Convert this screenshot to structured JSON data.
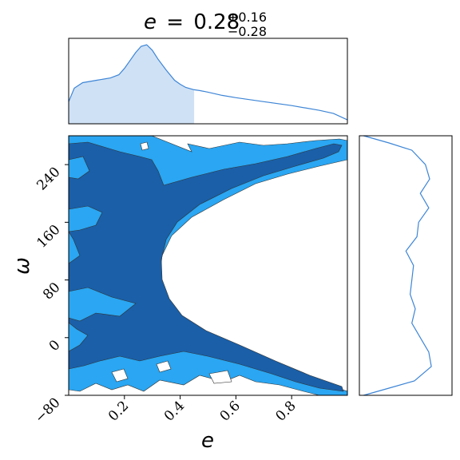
{
  "chart_data": {
    "type": "corner",
    "title": {
      "param": "e",
      "equals": "=",
      "median": "0.28",
      "upper": "+0.16",
      "lower": "−0.28"
    },
    "xlabel": "e",
    "ylabel": "ω",
    "xlim": [
      0.0,
      1.0
    ],
    "ylim": [
      -80,
      280
    ],
    "x_ticks": [
      0.2,
      0.4,
      0.6,
      0.8
    ],
    "x_tick_labels": [
      "0.2",
      "0.4",
      "0.6",
      "0.8"
    ],
    "y_ticks": [
      -80,
      0,
      80,
      160,
      240
    ],
    "y_tick_labels": [
      "−80",
      "0",
      "80",
      "160",
      "240"
    ],
    "marginal_e": {
      "x": [
        0.0,
        0.02,
        0.05,
        0.1,
        0.15,
        0.18,
        0.2,
        0.22,
        0.24,
        0.26,
        0.28,
        0.3,
        0.32,
        0.35,
        0.38,
        0.4,
        0.42,
        0.45,
        0.47,
        0.5,
        0.55,
        0.6,
        0.7,
        0.8,
        0.9,
        0.95,
        1.0
      ],
      "density": [
        0.28,
        0.45,
        0.52,
        0.55,
        0.58,
        0.62,
        0.7,
        0.8,
        0.9,
        0.98,
        1.0,
        0.93,
        0.82,
        0.68,
        0.55,
        0.5,
        0.46,
        0.43,
        0.42,
        0.4,
        0.36,
        0.33,
        0.28,
        0.23,
        0.17,
        0.13,
        0.05
      ],
      "shaded_interval": [
        0.0,
        0.45
      ]
    },
    "marginal_omega": {
      "omega": [
        -80,
        -70,
        -60,
        -40,
        -20,
        0,
        20,
        40,
        60,
        80,
        100,
        120,
        140,
        160,
        180,
        200,
        220,
        240,
        260,
        270,
        280
      ],
      "density": [
        0.05,
        0.35,
        0.65,
        0.85,
        0.82,
        0.72,
        0.62,
        0.66,
        0.6,
        0.62,
        0.64,
        0.55,
        0.68,
        0.7,
        0.82,
        0.72,
        0.83,
        0.78,
        0.62,
        0.35,
        0.05
      ]
    },
    "contours": {
      "levels": [
        "inner",
        "outer"
      ],
      "inner_color": "#1a5fa8",
      "outer_color": "#2aa6f2",
      "outline_color": "#333333"
    },
    "colors": {
      "marginal_line": "#3d85d6",
      "marginal_fill": "#cfe1f5"
    }
  }
}
